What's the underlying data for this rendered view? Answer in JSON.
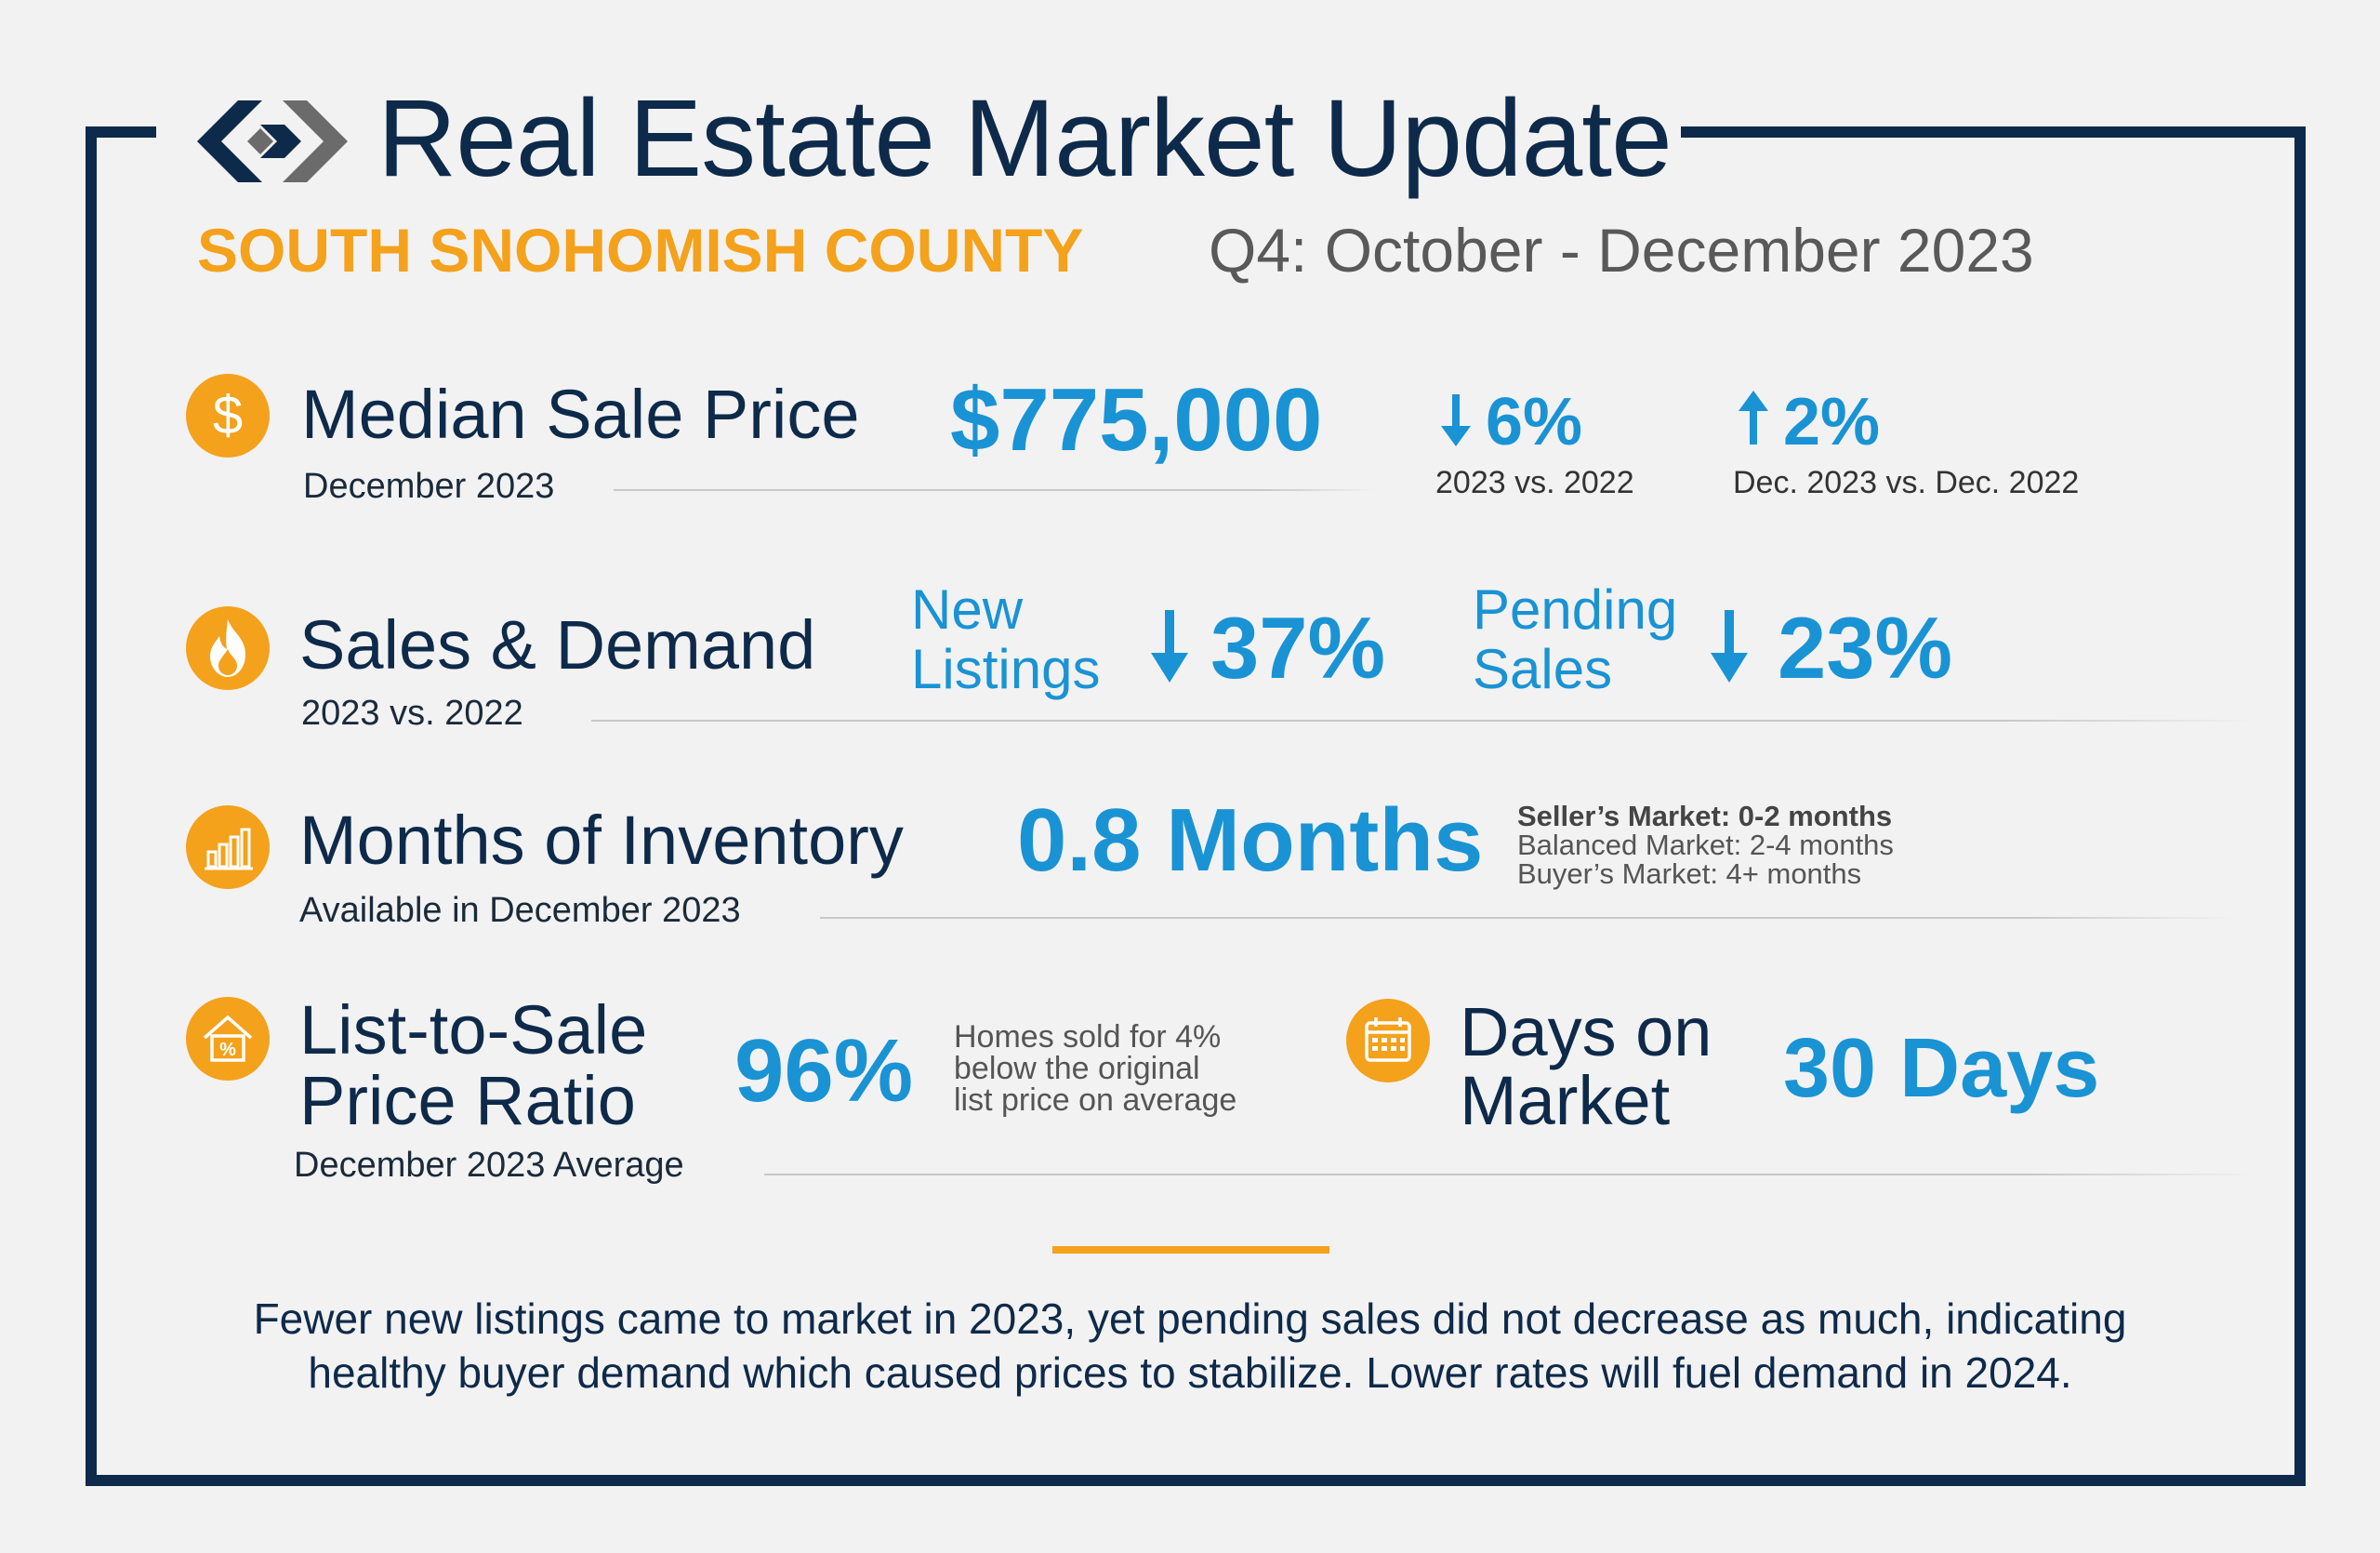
{
  "header": {
    "title": "Real Estate Market Update",
    "region": "SOUTH SNOHOMISH COUNTY",
    "period": "Q4: October - December 2023"
  },
  "median_sale_price": {
    "icon": "dollar-icon",
    "label": "Median Sale Price",
    "sublabel": "December 2023",
    "value": "$775,000",
    "change_year": {
      "direction": "down",
      "value": "6%",
      "caption": "2023 vs. 2022"
    },
    "change_month": {
      "direction": "up",
      "value": "2%",
      "caption": "Dec. 2023 vs. Dec. 2022"
    }
  },
  "sales_demand": {
    "icon": "flame-icon",
    "label": "Sales & Demand",
    "sublabel": "2023 vs. 2022",
    "new_listings": {
      "label_line1": "New",
      "label_line2": "Listings",
      "direction": "down",
      "value": "37%"
    },
    "pending_sales": {
      "label_line1": "Pending",
      "label_line2": "Sales",
      "direction": "down",
      "value": "23%"
    }
  },
  "inventory": {
    "icon": "bar-chart-icon",
    "label": "Months of Inventory",
    "sublabel": "Available in December 2023",
    "value": "0.8 Months",
    "legend": [
      "Seller’s Market: 0-2 months",
      "Balanced Market: 2-4 months",
      "Buyer’s Market: 4+ months"
    ]
  },
  "list_to_sale": {
    "icon": "house-percent-icon",
    "label_line1": "List-to-Sale",
    "label_line2": "Price Ratio",
    "sublabel": "December 2023 Average",
    "value": "96%",
    "note": [
      "Homes sold for 4%",
      "below the original",
      "list price on average"
    ]
  },
  "days_on_market": {
    "icon": "calendar-icon",
    "label_line1": "Days on",
    "label_line2": "Market",
    "value": "30 Days"
  },
  "summary": {
    "line1": "Fewer new listings came to market in 2023, yet pending sales did not decrease as much, indicating",
    "line2": "healthy buyer demand which caused prices to stabilize. Lower rates will fuel demand in 2024."
  },
  "colors": {
    "navy": "#0e2a4a",
    "accent_orange": "#f4a11c",
    "accent_blue": "#1a93d4",
    "background": "#f2f2f2"
  }
}
